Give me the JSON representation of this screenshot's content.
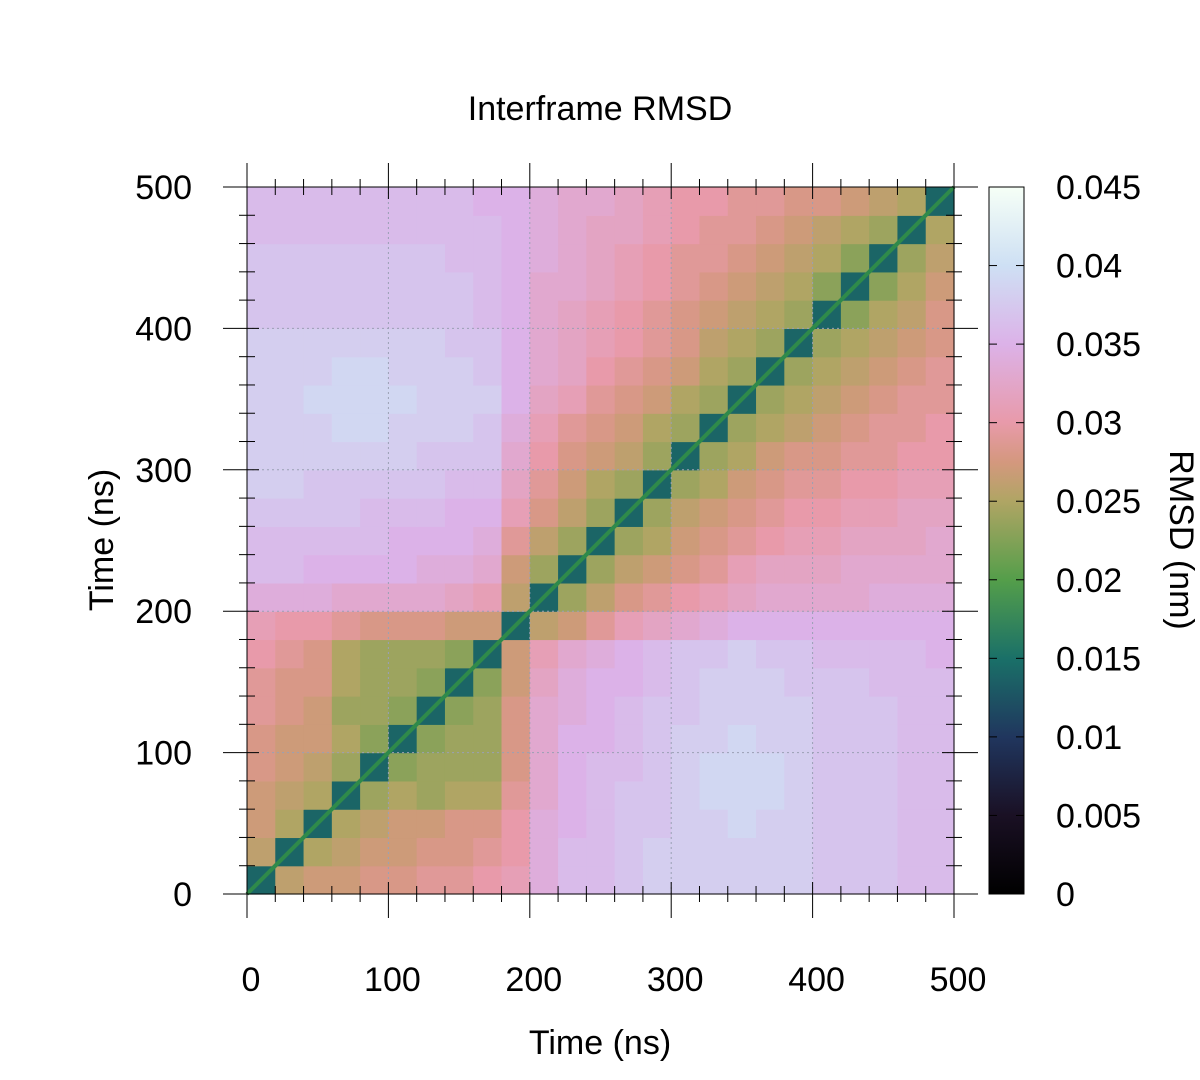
{
  "chart_data": {
    "type": "heatmap",
    "title": "Interframe RMSD",
    "xlabel": "Time (ns)",
    "ylabel": "Time (ns)",
    "colorbar_label": "RMSD (nm)",
    "xlim": [
      0,
      500
    ],
    "ylim": [
      0,
      500
    ],
    "zlim": [
      0,
      0.045
    ],
    "x_ticks": [
      "0",
      "100",
      "200",
      "300",
      "400",
      "500"
    ],
    "y_ticks": [
      "0",
      "100",
      "200",
      "300",
      "400",
      "500"
    ],
    "x_tick_values": [
      0,
      100,
      200,
      300,
      400,
      500
    ],
    "y_tick_values": [
      0,
      100,
      200,
      300,
      400,
      500
    ],
    "colorbar_ticks": [
      "0",
      "0.005",
      "0.01",
      "0.015",
      "0.02",
      "0.025",
      "0.03",
      "0.035",
      "0.04",
      "0.045"
    ],
    "colorbar_tick_values": [
      0,
      0.005,
      0.01,
      0.015,
      0.02,
      0.025,
      0.03,
      0.035,
      0.04,
      0.045
    ],
    "grid": true,
    "colormap": "cubehelix",
    "matrix_step_ns": 20,
    "matrix": [
      [
        0.014,
        0.026,
        0.027,
        0.027,
        0.028,
        0.028,
        0.029,
        0.029,
        0.03,
        0.031,
        0.034,
        0.036,
        0.036,
        0.037,
        0.038,
        0.038,
        0.038,
        0.038,
        0.038,
        0.038,
        0.037,
        0.037,
        0.037,
        0.036,
        0.036
      ],
      [
        0.026,
        0.014,
        0.025,
        0.026,
        0.027,
        0.027,
        0.028,
        0.028,
        0.029,
        0.03,
        0.034,
        0.036,
        0.036,
        0.037,
        0.038,
        0.038,
        0.038,
        0.038,
        0.038,
        0.038,
        0.037,
        0.037,
        0.037,
        0.036,
        0.036
      ],
      [
        0.027,
        0.025,
        0.014,
        0.025,
        0.026,
        0.027,
        0.027,
        0.028,
        0.028,
        0.03,
        0.034,
        0.035,
        0.036,
        0.037,
        0.037,
        0.038,
        0.038,
        0.039,
        0.038,
        0.038,
        0.037,
        0.037,
        0.037,
        0.036,
        0.036
      ],
      [
        0.027,
        0.026,
        0.025,
        0.014,
        0.024,
        0.025,
        0.024,
        0.025,
        0.025,
        0.029,
        0.033,
        0.035,
        0.036,
        0.037,
        0.037,
        0.038,
        0.039,
        0.039,
        0.039,
        0.038,
        0.037,
        0.037,
        0.037,
        0.036,
        0.036
      ],
      [
        0.028,
        0.027,
        0.026,
        0.024,
        0.014,
        0.023,
        0.024,
        0.024,
        0.024,
        0.028,
        0.033,
        0.035,
        0.036,
        0.036,
        0.037,
        0.038,
        0.039,
        0.039,
        0.039,
        0.038,
        0.037,
        0.037,
        0.037,
        0.036,
        0.036
      ],
      [
        0.028,
        0.027,
        0.027,
        0.025,
        0.023,
        0.014,
        0.023,
        0.024,
        0.024,
        0.028,
        0.033,
        0.035,
        0.035,
        0.036,
        0.037,
        0.038,
        0.038,
        0.039,
        0.038,
        0.038,
        0.037,
        0.037,
        0.037,
        0.036,
        0.036
      ],
      [
        0.029,
        0.028,
        0.027,
        0.024,
        0.024,
        0.023,
        0.014,
        0.023,
        0.024,
        0.028,
        0.033,
        0.034,
        0.035,
        0.036,
        0.037,
        0.037,
        0.038,
        0.038,
        0.038,
        0.038,
        0.037,
        0.037,
        0.037,
        0.036,
        0.036
      ],
      [
        0.029,
        0.028,
        0.028,
        0.025,
        0.024,
        0.024,
        0.023,
        0.014,
        0.023,
        0.027,
        0.032,
        0.034,
        0.035,
        0.035,
        0.036,
        0.037,
        0.038,
        0.038,
        0.038,
        0.037,
        0.037,
        0.037,
        0.036,
        0.036,
        0.036
      ],
      [
        0.03,
        0.029,
        0.028,
        0.025,
        0.024,
        0.024,
        0.024,
        0.023,
        0.014,
        0.027,
        0.031,
        0.033,
        0.034,
        0.035,
        0.036,
        0.037,
        0.037,
        0.038,
        0.037,
        0.037,
        0.036,
        0.036,
        0.036,
        0.036,
        0.035
      ],
      [
        0.031,
        0.03,
        0.03,
        0.029,
        0.028,
        0.028,
        0.028,
        0.027,
        0.027,
        0.014,
        0.026,
        0.027,
        0.029,
        0.031,
        0.032,
        0.033,
        0.034,
        0.035,
        0.035,
        0.035,
        0.035,
        0.035,
        0.035,
        0.035,
        0.035
      ],
      [
        0.034,
        0.034,
        0.034,
        0.033,
        0.033,
        0.033,
        0.033,
        0.032,
        0.031,
        0.026,
        0.014,
        0.024,
        0.026,
        0.028,
        0.029,
        0.03,
        0.031,
        0.032,
        0.033,
        0.033,
        0.033,
        0.033,
        0.034,
        0.034,
        0.034
      ],
      [
        0.036,
        0.036,
        0.035,
        0.035,
        0.035,
        0.035,
        0.034,
        0.034,
        0.033,
        0.027,
        0.024,
        0.014,
        0.024,
        0.026,
        0.027,
        0.028,
        0.029,
        0.031,
        0.032,
        0.032,
        0.032,
        0.033,
        0.033,
        0.033,
        0.033
      ],
      [
        0.036,
        0.036,
        0.036,
        0.036,
        0.036,
        0.035,
        0.035,
        0.035,
        0.034,
        0.029,
        0.026,
        0.024,
        0.014,
        0.024,
        0.025,
        0.027,
        0.028,
        0.029,
        0.03,
        0.031,
        0.031,
        0.032,
        0.032,
        0.032,
        0.033
      ],
      [
        0.037,
        0.037,
        0.037,
        0.037,
        0.036,
        0.036,
        0.036,
        0.035,
        0.035,
        0.031,
        0.028,
        0.026,
        0.024,
        0.014,
        0.024,
        0.026,
        0.027,
        0.028,
        0.029,
        0.03,
        0.03,
        0.031,
        0.031,
        0.032,
        0.032
      ],
      [
        0.038,
        0.038,
        0.037,
        0.037,
        0.037,
        0.037,
        0.037,
        0.036,
        0.036,
        0.032,
        0.029,
        0.027,
        0.025,
        0.024,
        0.014,
        0.024,
        0.025,
        0.027,
        0.028,
        0.029,
        0.029,
        0.03,
        0.03,
        0.031,
        0.031
      ],
      [
        0.038,
        0.038,
        0.038,
        0.038,
        0.038,
        0.038,
        0.037,
        0.037,
        0.037,
        0.033,
        0.03,
        0.028,
        0.027,
        0.026,
        0.024,
        0.014,
        0.024,
        0.025,
        0.027,
        0.028,
        0.028,
        0.029,
        0.029,
        0.03,
        0.03
      ],
      [
        0.038,
        0.038,
        0.038,
        0.039,
        0.039,
        0.038,
        0.038,
        0.038,
        0.037,
        0.034,
        0.031,
        0.029,
        0.028,
        0.027,
        0.025,
        0.024,
        0.014,
        0.024,
        0.025,
        0.026,
        0.027,
        0.028,
        0.029,
        0.029,
        0.03
      ],
      [
        0.038,
        0.038,
        0.039,
        0.039,
        0.039,
        0.039,
        0.038,
        0.038,
        0.038,
        0.035,
        0.032,
        0.031,
        0.029,
        0.028,
        0.027,
        0.025,
        0.024,
        0.014,
        0.024,
        0.025,
        0.026,
        0.027,
        0.028,
        0.029,
        0.029
      ],
      [
        0.038,
        0.038,
        0.038,
        0.039,
        0.039,
        0.038,
        0.038,
        0.038,
        0.037,
        0.035,
        0.033,
        0.032,
        0.03,
        0.029,
        0.028,
        0.027,
        0.025,
        0.024,
        0.014,
        0.024,
        0.025,
        0.026,
        0.027,
        0.028,
        0.029
      ],
      [
        0.038,
        0.038,
        0.038,
        0.038,
        0.038,
        0.038,
        0.038,
        0.037,
        0.037,
        0.035,
        0.033,
        0.032,
        0.031,
        0.03,
        0.029,
        0.028,
        0.026,
        0.025,
        0.024,
        0.014,
        0.024,
        0.025,
        0.026,
        0.027,
        0.028
      ],
      [
        0.037,
        0.037,
        0.037,
        0.037,
        0.037,
        0.037,
        0.037,
        0.037,
        0.036,
        0.035,
        0.033,
        0.032,
        0.031,
        0.03,
        0.029,
        0.028,
        0.027,
        0.026,
        0.025,
        0.024,
        0.014,
        0.023,
        0.025,
        0.026,
        0.028
      ],
      [
        0.037,
        0.037,
        0.037,
        0.037,
        0.037,
        0.037,
        0.037,
        0.037,
        0.036,
        0.035,
        0.033,
        0.033,
        0.032,
        0.031,
        0.03,
        0.029,
        0.028,
        0.027,
        0.026,
        0.025,
        0.023,
        0.014,
        0.023,
        0.025,
        0.027
      ],
      [
        0.037,
        0.037,
        0.037,
        0.037,
        0.037,
        0.037,
        0.037,
        0.036,
        0.036,
        0.035,
        0.034,
        0.033,
        0.032,
        0.031,
        0.03,
        0.029,
        0.029,
        0.028,
        0.027,
        0.026,
        0.025,
        0.023,
        0.014,
        0.024,
        0.026
      ],
      [
        0.036,
        0.036,
        0.036,
        0.036,
        0.036,
        0.036,
        0.036,
        0.036,
        0.036,
        0.035,
        0.034,
        0.033,
        0.032,
        0.032,
        0.031,
        0.03,
        0.029,
        0.029,
        0.028,
        0.027,
        0.026,
        0.025,
        0.024,
        0.014,
        0.025
      ],
      [
        0.036,
        0.036,
        0.036,
        0.036,
        0.036,
        0.036,
        0.036,
        0.036,
        0.035,
        0.035,
        0.034,
        0.033,
        0.033,
        0.032,
        0.031,
        0.03,
        0.03,
        0.029,
        0.029,
        0.028,
        0.028,
        0.027,
        0.026,
        0.025,
        0.014
      ]
    ]
  }
}
